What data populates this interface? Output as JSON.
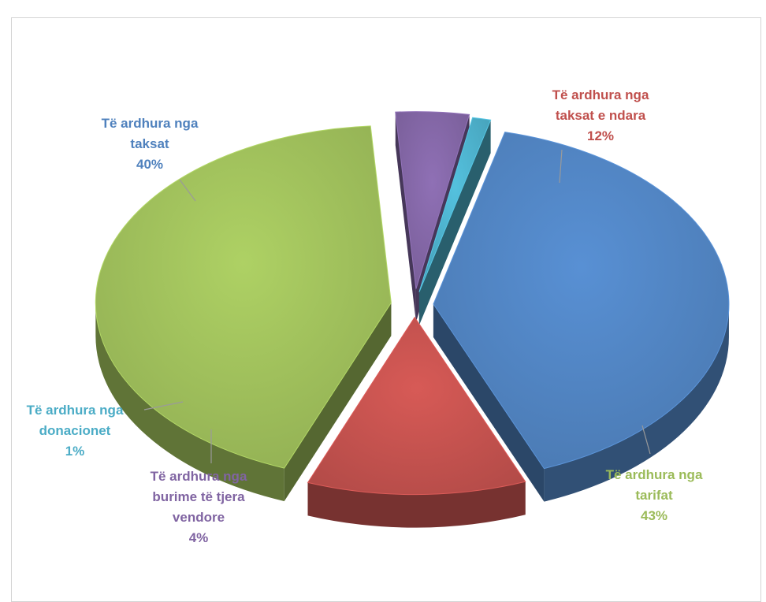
{
  "chart_data": {
    "type": "pie",
    "title": "",
    "slices": [
      {
        "lines": [
          "Të ardhura nga",
          "taksat e ndara"
        ],
        "pct_label": "12%",
        "value": 12,
        "color": "#c0504d"
      },
      {
        "lines": [
          "Të ardhura nga",
          "tarifat"
        ],
        "pct_label": "43%",
        "value": 43,
        "color": "#9bbb59"
      },
      {
        "lines": [
          "Të ardhura nga",
          "burime të tjera",
          "vendore"
        ],
        "pct_label": "4%",
        "value": 4,
        "color": "#8064a2"
      },
      {
        "lines": [
          "Të ardhura nga",
          "donacionet"
        ],
        "pct_label": "1%",
        "value": 1,
        "color": "#4bacc6"
      },
      {
        "lines": [
          "Të ardhura nga",
          "taksat"
        ],
        "pct_label": "40%",
        "value": 40,
        "color": "#4f81bd"
      }
    ],
    "style": "3d-exploded"
  }
}
